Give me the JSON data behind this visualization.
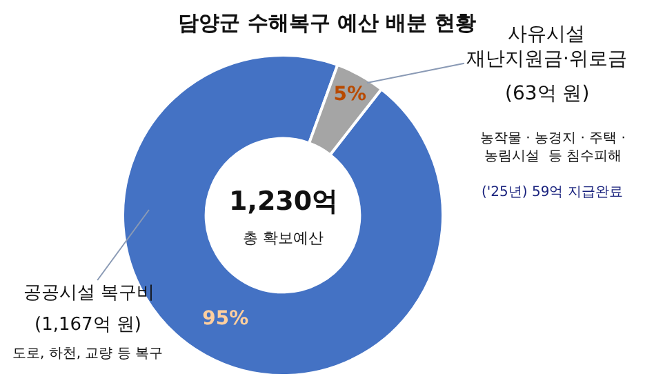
{
  "chart_data": {
    "type": "donut",
    "title": "담양군 수해복구 예산 배분 현황",
    "categories": [
      "공공시설 복구비",
      "사유시설\n재난지원금·위로금"
    ],
    "values": [
      95,
      5
    ],
    "colors": [
      "#4472c4",
      "#a5a5a5"
    ],
    "value_labels": [
      "95%",
      "5%"
    ],
    "legend": false,
    "annotations": [
      "1,230억",
      "총 확보예산",
      "(1,167억 원)",
      "도로, 하천, 교량 등 복구",
      "(63억 원)",
      "농작물 · 농경지 · 주택 ·\n농림시설  등 침수피해",
      "('25년) 59억 지급완료"
    ]
  }
}
